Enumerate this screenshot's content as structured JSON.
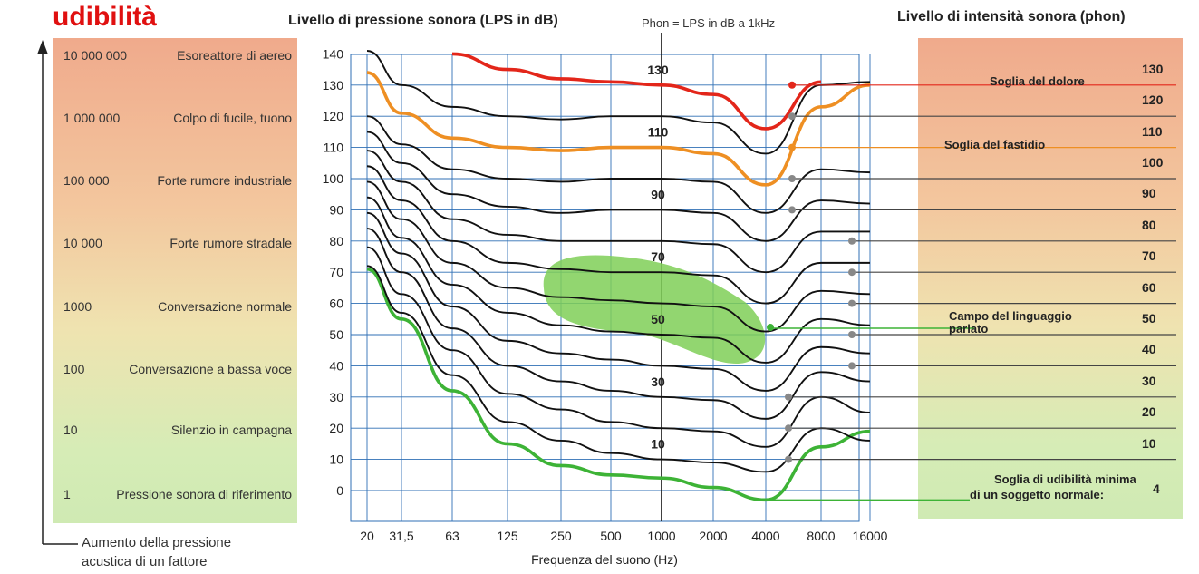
{
  "header": {
    "corner_title": "udibilità",
    "left_chart_title": "Livello di pressione sonora (LPS in dB)",
    "phon_note": "Phon = LPS in dB a 1kHz",
    "right_title": "Livello di intensità sonora (phon)"
  },
  "left_scale": {
    "rows": [
      {
        "value": "10 000 000",
        "label": "Esoreattore di aereo"
      },
      {
        "value": "1 000 000",
        "label": "Colpo di fucile, tuono"
      },
      {
        "value": "100 000",
        "label": "Forte rumore industriale"
      },
      {
        "value": "10 000",
        "label": "Forte rumore stradale"
      },
      {
        "value": "1000",
        "label": "Conversazione normale"
      },
      {
        "value": "100",
        "label": "Conversazione a bassa voce"
      },
      {
        "value": "10",
        "label": "Silenzio in campagna"
      },
      {
        "value": "1",
        "label": "Pressione sonora di riferimento"
      }
    ],
    "axis_caption_line1": "Aumento della pressione",
    "axis_caption_line2": "acustica di un fattore"
  },
  "chart_data": {
    "type": "line",
    "title": "Livello di pressione sonora (LPS in dB)",
    "xlabel": "Frequenza del suono (Hz)",
    "ylabel": "Livello di pressione sonora (LPS in dB)",
    "x_ticks": [
      "20",
      "31,5",
      "63",
      "125",
      "250",
      "500",
      "1000",
      "2000",
      "4000",
      "8000",
      "16000"
    ],
    "x_scale": "log",
    "y_ticks": [
      0,
      10,
      20,
      30,
      40,
      50,
      60,
      70,
      80,
      90,
      100,
      110,
      120,
      130,
      140
    ],
    "ylim": [
      -10,
      140
    ],
    "grid": true,
    "x": [
      20,
      31.5,
      63,
      125,
      250,
      500,
      1000,
      2000,
      4000,
      8000,
      16000
    ],
    "series": [
      {
        "name": "4",
        "phon": 4,
        "highlight": "green",
        "values": [
          71,
          55,
          32,
          15,
          8,
          5,
          4,
          1,
          -3,
          14,
          19
        ]
      },
      {
        "name": "10",
        "phon": 10,
        "values": [
          72,
          57,
          37,
          22,
          16,
          12,
          10,
          9,
          6,
          20,
          16
        ]
      },
      {
        "name": "20",
        "phon": 20,
        "values": [
          78,
          63,
          45,
          31,
          26,
          22,
          20,
          19,
          14,
          30,
          25
        ]
      },
      {
        "name": "30",
        "phon": 30,
        "values": [
          84,
          70,
          52,
          40,
          35,
          32,
          30,
          29,
          23,
          38,
          35
        ]
      },
      {
        "name": "40",
        "phon": 40,
        "values": [
          89,
          76,
          59,
          48,
          44,
          42,
          40,
          39,
          32,
          46,
          44
        ]
      },
      {
        "name": "50",
        "phon": 50,
        "values": [
          94,
          81,
          66,
          57,
          53,
          51,
          50,
          49,
          41,
          55,
          53
        ]
      },
      {
        "name": "60",
        "phon": 60,
        "values": [
          99,
          87,
          73,
          65,
          62,
          61,
          60,
          59,
          51,
          64,
          63
        ]
      },
      {
        "name": "70",
        "phon": 70,
        "values": [
          104,
          93,
          80,
          73,
          71,
          70,
          70,
          69,
          60,
          73,
          73
        ]
      },
      {
        "name": "80",
        "phon": 80,
        "values": [
          109,
          99,
          87,
          82,
          80,
          80,
          80,
          79,
          70,
          83,
          83
        ]
      },
      {
        "name": "90",
        "phon": 90,
        "values": [
          115,
          105,
          95,
          91,
          89,
          90,
          90,
          89,
          80,
          93,
          92
        ]
      },
      {
        "name": "100",
        "phon": 100,
        "values": [
          120,
          111,
          103,
          100,
          99,
          100,
          100,
          99,
          89,
          103,
          102
        ]
      },
      {
        "name": "110",
        "phon": 110,
        "highlight": "orange",
        "values": [
          134,
          121,
          113,
          110,
          109,
          110,
          110,
          108,
          98,
          123,
          130
        ]
      },
      {
        "name": "120",
        "phon": 120,
        "values": [
          145,
          130,
          123,
          120,
          119,
          120,
          120,
          118,
          108,
          130,
          131
        ]
      },
      {
        "name": "130",
        "phon": 130,
        "highlight": "red",
        "values": [
          null,
          null,
          140,
          135,
          132,
          131,
          130,
          127,
          116,
          131,
          null
        ]
      }
    ],
    "phon_curve_labels": [
      "130",
      "110",
      "90",
      "70",
      "50",
      "30",
      "10"
    ],
    "speech_region_label": "Campo del linguaggio parlato",
    "annotations": [
      {
        "text": "Soglia del dolore",
        "phon": "130",
        "color": "#e3261a"
      },
      {
        "text": "Soglia del fastidio",
        "phon": "110",
        "color": "#ee8f23"
      },
      {
        "text": "Campo del linguaggio parlato",
        "phon": "50",
        "color": "#3db336"
      },
      {
        "text": "Soglia di udibilità minima di un soggetto normale:",
        "phon": "4",
        "color": "#3db336"
      }
    ],
    "colors": {
      "pain": "#e3261a",
      "discomfort": "#ee8f23",
      "threshold": "#3db336",
      "speech": "#7fcf57",
      "curve": "#111111",
      "grid": "#2f6fb5"
    }
  },
  "right_scale": {
    "values": [
      "130",
      "120",
      "110",
      "100",
      "90",
      "80",
      "70",
      "60",
      "50",
      "40",
      "30",
      "20",
      "10"
    ],
    "threshold_value": "4",
    "pain_label": "Soglia del dolore",
    "discomfort_label": "Soglia del fastidio",
    "speech_label_line1": "Campo del linguaggio",
    "speech_label_line2": "parlato",
    "min_label_line1": "Soglia di udibilità minima",
    "min_label_line2": "di un soggetto normale:"
  }
}
